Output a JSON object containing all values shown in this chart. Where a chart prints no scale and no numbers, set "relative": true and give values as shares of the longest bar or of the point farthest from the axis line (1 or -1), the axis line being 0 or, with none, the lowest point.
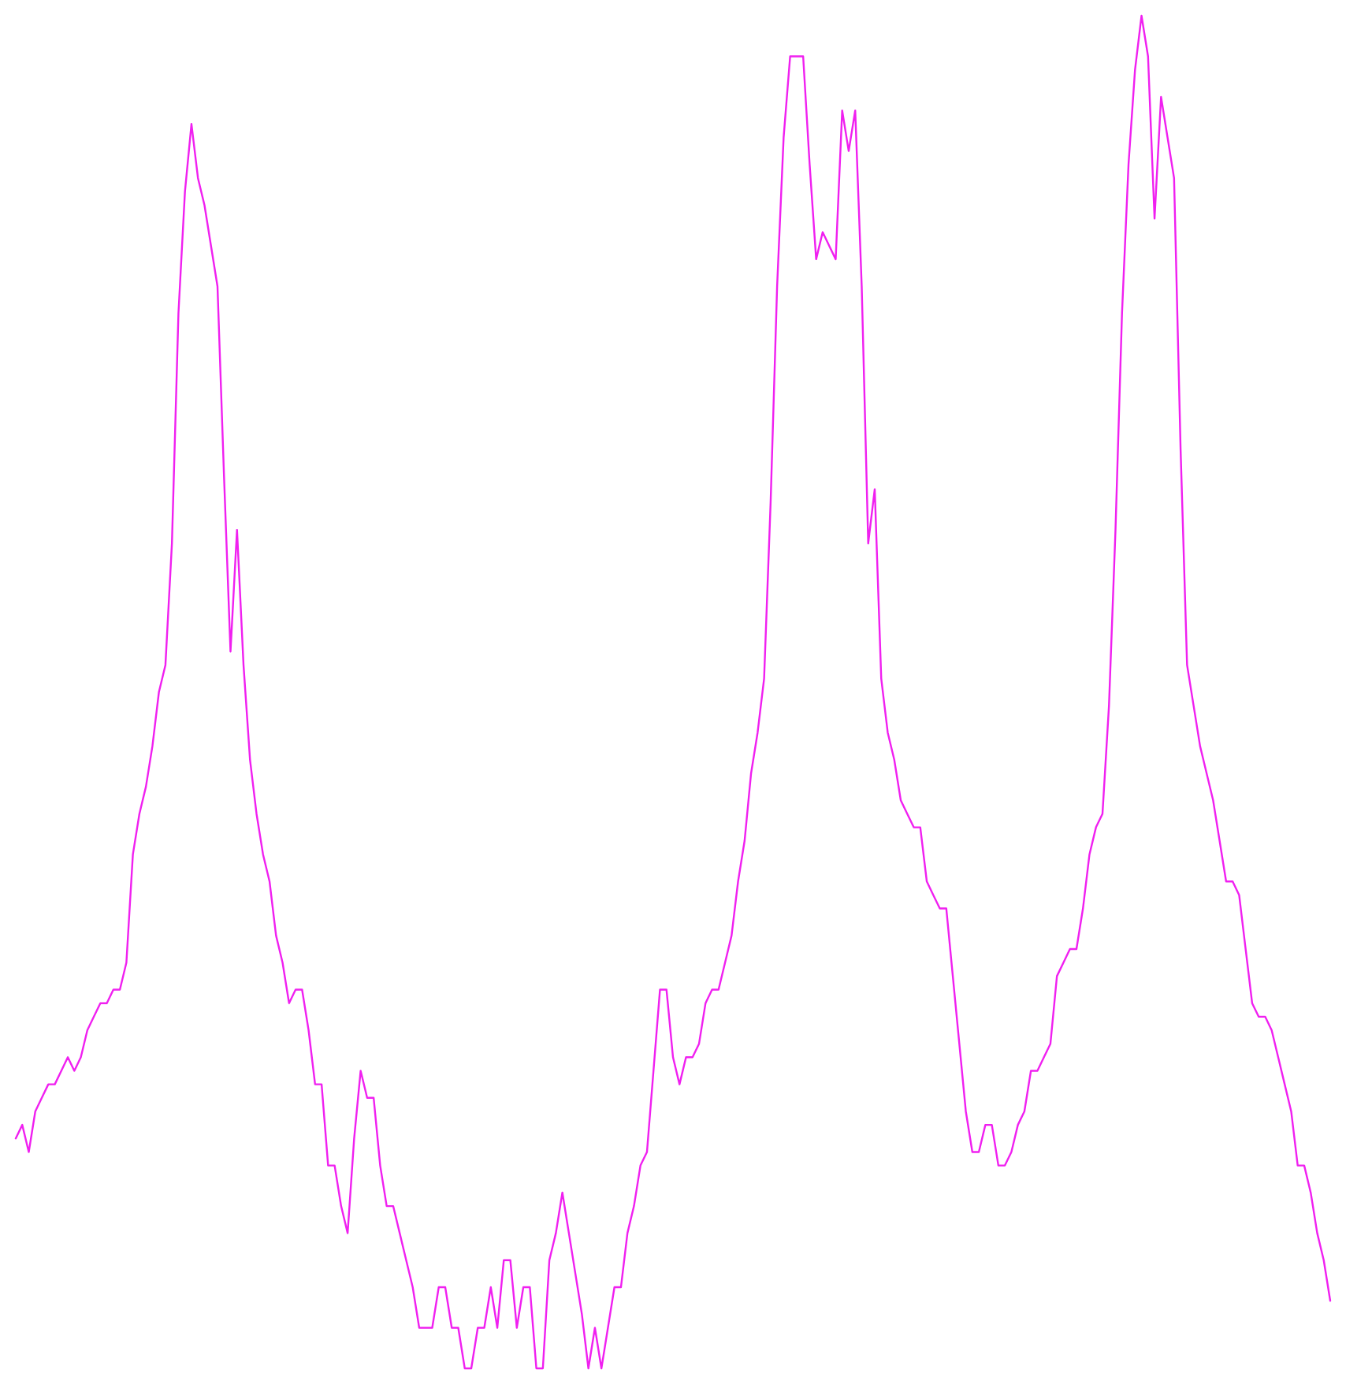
{
  "chart_data": {
    "type": "line",
    "relative": true,
    "color": "#f020f0",
    "categories": [
      null,
      null,
      null,
      null,
      null,
      null,
      null,
      null,
      null,
      null,
      null,
      null,
      null,
      null,
      null,
      null,
      null,
      null,
      null,
      null,
      null,
      null,
      null,
      null,
      null,
      null,
      null,
      null,
      null,
      null,
      null,
      null,
      null,
      null,
      null,
      null,
      null,
      null,
      null,
      null,
      null,
      null,
      null,
      null,
      null,
      null,
      null,
      null,
      null,
      null,
      null,
      null,
      null,
      null,
      null,
      null,
      null,
      null,
      null,
      null,
      null,
      null,
      null,
      null,
      null,
      null,
      null,
      null,
      null,
      null,
      null,
      null,
      null,
      null,
      null,
      null,
      null,
      null,
      null,
      null,
      null,
      null,
      null,
      null,
      null,
      null,
      null,
      null,
      null,
      null,
      null,
      null,
      null,
      null,
      null,
      null,
      null,
      null,
      null,
      null,
      null,
      null,
      null,
      null,
      null,
      null,
      null,
      null,
      null,
      null,
      null,
      null,
      null,
      null,
      null,
      null,
      null,
      null,
      null,
      null,
      null,
      null,
      null,
      null,
      null,
      null,
      null,
      null,
      null,
      null,
      null,
      null,
      null,
      null,
      null,
      null,
      null,
      null,
      null,
      null,
      null,
      null,
      null,
      null,
      null,
      null,
      null,
      null,
      null,
      null,
      null,
      null,
      null,
      null,
      null,
      null,
      null,
      null,
      null,
      null,
      null,
      null,
      null,
      null,
      null,
      null,
      null,
      null,
      null,
      null,
      null,
      null,
      null,
      null,
      null,
      null,
      null,
      null,
      null,
      null,
      null,
      null,
      null,
      null,
      null,
      null,
      null,
      null,
      null,
      null,
      null,
      null,
      null,
      null,
      null,
      null,
      null,
      null,
      null,
      null,
      null,
      null,
      null
    ],
    "values": [
      0.17,
      0.18,
      0.16,
      0.19,
      0.2,
      0.21,
      0.21,
      0.22,
      0.23,
      0.22,
      0.23,
      0.25,
      0.26,
      0.27,
      0.27,
      0.28,
      0.28,
      0.3,
      0.38,
      0.41,
      0.43,
      0.46,
      0.5,
      0.52,
      0.61,
      0.78,
      0.87,
      0.92,
      0.88,
      0.86,
      0.83,
      0.8,
      0.66,
      0.53,
      0.62,
      0.52,
      0.45,
      0.41,
      0.38,
      0.36,
      0.32,
      0.3,
      0.27,
      0.28,
      0.28,
      0.25,
      0.21,
      0.21,
      0.15,
      0.15,
      0.12,
      0.1,
      0.17,
      0.22,
      0.2,
      0.2,
      0.15,
      0.12,
      0.12,
      0.1,
      0.08,
      0.06,
      0.03,
      0.03,
      0.03,
      0.06,
      0.06,
      0.03,
      0.03,
      0,
      0,
      0.03,
      0.03,
      0.06,
      0.03,
      0.08,
      0.08,
      0.03,
      0.06,
      0.06,
      0,
      0,
      0.08,
      0.1,
      0.13,
      0.1,
      0.07,
      0.04,
      0,
      0.03,
      0,
      0.03,
      0.06,
      0.06,
      0.1,
      0.12,
      0.15,
      0.16,
      0.22,
      0.28,
      0.28,
      0.23,
      0.21,
      0.23,
      0.23,
      0.24,
      0.27,
      0.28,
      0.28,
      0.3,
      0.32,
      0.36,
      0.39,
      0.44,
      0.47,
      0.51,
      0.64,
      0.8,
      0.91,
      0.97,
      0.97,
      0.97,
      0.89,
      0.82,
      0.84,
      0.83,
      0.82,
      0.93,
      0.9,
      0.93,
      0.8,
      0.61,
      0.65,
      0.51,
      0.47,
      0.45,
      0.42,
      0.41,
      0.4,
      0.4,
      0.36,
      0.35,
      0.34,
      0.34,
      0.29,
      0.24,
      0.19,
      0.16,
      0.16,
      0.18,
      0.18,
      0.15,
      0.15,
      0.16,
      0.18,
      0.19,
      0.22,
      0.22,
      0.23,
      0.24,
      0.29,
      0.3,
      0.31,
      0.31,
      0.34,
      0.38,
      0.4,
      0.41,
      0.49,
      0.62,
      0.78,
      0.89,
      0.96,
      1,
      0.97,
      0.85,
      0.94,
      0.91,
      0.88,
      0.68,
      0.52,
      0.49,
      0.46,
      0.44,
      0.42,
      0.39,
      0.36,
      0.36,
      0.35,
      0.31,
      0.27,
      0.26,
      0.26,
      0.25,
      0.23,
      0.21,
      0.19,
      0.15,
      0.15,
      0.13,
      0.1,
      0.08,
      0.05
    ]
  }
}
